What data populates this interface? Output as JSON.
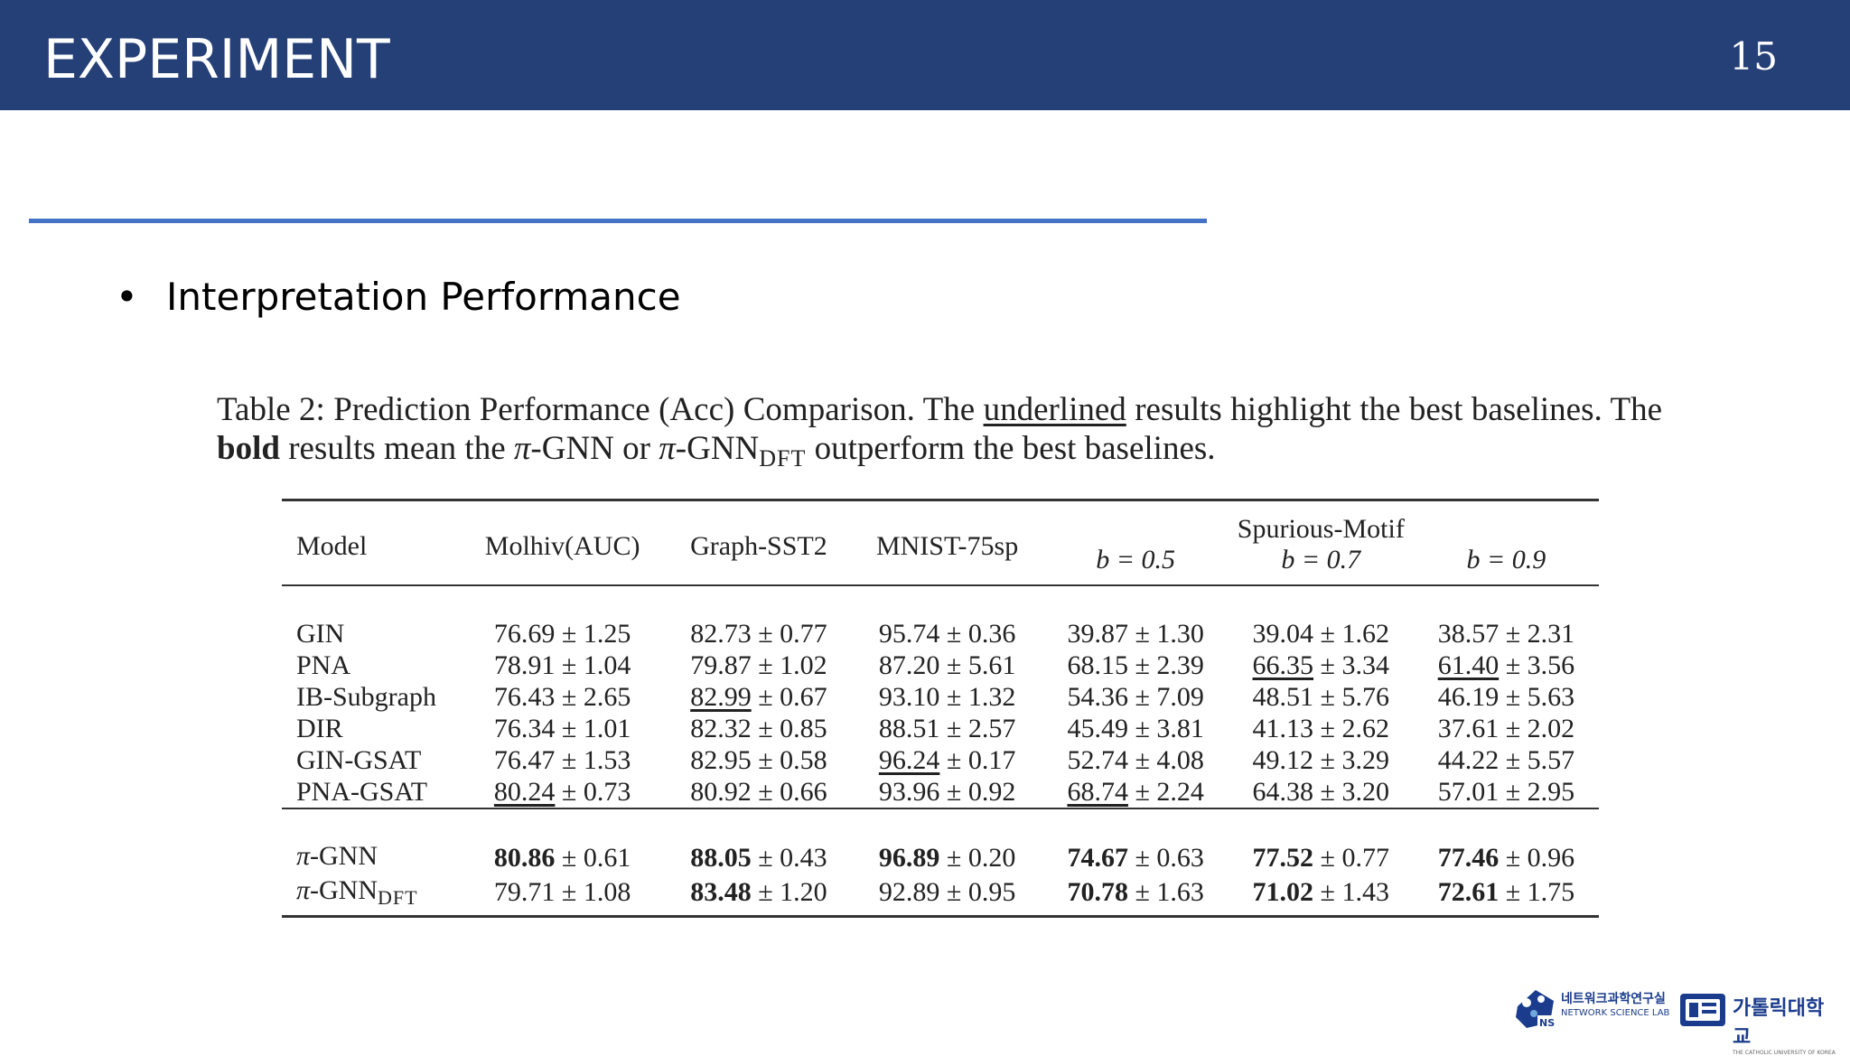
{
  "header": {
    "title": "EXPERIMENT",
    "page_number": "15"
  },
  "bullet": {
    "text": "Interpretation Performance"
  },
  "caption": {
    "p1": "Table 2:  Prediction Performance (Acc) Comparison.  The ",
    "underlined": "underlined",
    "p2": " results highlight the best baselines. The ",
    "bold": "bold",
    "p3": " results mean the ",
    "pi1": "π",
    "p4": "-GNN or ",
    "pi2": "π",
    "p5": "-GNN",
    "dft": "DFT",
    "p6": " outperform the best baselines."
  },
  "table": {
    "headers": {
      "model": "Model",
      "molhiv": "Molhiv(AUC)",
      "sst2": "Graph-SST2",
      "mnist": "MNIST-75sp",
      "spurious": "Spurious-Motif",
      "b05": "b = 0.5",
      "b07": "b = 0.7",
      "b09": "b = 0.9"
    },
    "rows": [
      {
        "model": "GIN",
        "cells": [
          {
            "v": "76.69",
            "s": "1.25"
          },
          {
            "v": "82.73",
            "s": "0.77"
          },
          {
            "v": "95.74",
            "s": "0.36"
          },
          {
            "v": "39.87",
            "s": "1.30"
          },
          {
            "v": "39.04",
            "s": "1.62"
          },
          {
            "v": "38.57",
            "s": "2.31"
          }
        ]
      },
      {
        "model": "PNA",
        "cells": [
          {
            "v": "78.91",
            "s": "1.04"
          },
          {
            "v": "79.87",
            "s": "1.02"
          },
          {
            "v": "87.20",
            "s": "5.61"
          },
          {
            "v": "68.15",
            "s": "2.39"
          },
          {
            "v": "66.35",
            "s": "3.34"
          },
          {
            "v": "61.40",
            "s": "3.56"
          }
        ]
      },
      {
        "model": "IB-Subgraph",
        "cells": [
          {
            "v": "76.43",
            "s": "2.65"
          },
          {
            "v": "82.99",
            "s": "0.67"
          },
          {
            "v": "93.10",
            "s": "1.32"
          },
          {
            "v": "54.36",
            "s": "7.09"
          },
          {
            "v": "48.51",
            "s": "5.76"
          },
          {
            "v": "46.19",
            "s": "5.63"
          }
        ]
      },
      {
        "model": "DIR",
        "cells": [
          {
            "v": "76.34",
            "s": "1.01"
          },
          {
            "v": "82.32",
            "s": "0.85"
          },
          {
            "v": "88.51",
            "s": "2.57"
          },
          {
            "v": "45.49",
            "s": "3.81"
          },
          {
            "v": "41.13",
            "s": "2.62"
          },
          {
            "v": "37.61",
            "s": "2.02"
          }
        ]
      },
      {
        "model": "GIN-GSAT",
        "cells": [
          {
            "v": "76.47",
            "s": "1.53"
          },
          {
            "v": "82.95",
            "s": "0.58"
          },
          {
            "v": "96.24",
            "s": "0.17"
          },
          {
            "v": "52.74",
            "s": "4.08"
          },
          {
            "v": "49.12",
            "s": "3.29"
          },
          {
            "v": "44.22",
            "s": "5.57"
          }
        ]
      },
      {
        "model": "PNA-GSAT",
        "cells": [
          {
            "v": "80.24",
            "s": "0.73"
          },
          {
            "v": "80.92",
            "s": "0.66"
          },
          {
            "v": "93.96",
            "s": "0.92"
          },
          {
            "v": "68.74",
            "s": "2.24"
          },
          {
            "v": "64.38",
            "s": "3.20"
          },
          {
            "v": "57.01",
            "s": "2.95"
          }
        ]
      }
    ],
    "ours": [
      {
        "model_pi": "π",
        "model": "-GNN",
        "model_sub": "",
        "cells": [
          {
            "v": "80.86",
            "s": "0.61"
          },
          {
            "v": "88.05",
            "s": "0.43"
          },
          {
            "v": "96.89",
            "s": "0.20"
          },
          {
            "v": "74.67",
            "s": "0.63"
          },
          {
            "v": "77.52",
            "s": "0.77"
          },
          {
            "v": "77.46",
            "s": "0.96"
          }
        ]
      },
      {
        "model_pi": "π",
        "model": "-GNN",
        "model_sub": "DFT",
        "cells": [
          {
            "v": "79.71",
            "s": "1.08"
          },
          {
            "v": "83.48",
            "s": "1.20"
          },
          {
            "v": "92.89",
            "s": "0.95"
          },
          {
            "v": "70.78",
            "s": "1.63"
          },
          {
            "v": "71.02",
            "s": "1.43"
          },
          {
            "v": "72.61",
            "s": "1.75"
          }
        ]
      }
    ]
  },
  "logos": {
    "lab_kr": "네트워크과학연구실",
    "lab_en": "NETWORK SCIENCE LAB",
    "lab_mark": "NS",
    "univ_kr": "가톨릭대학교",
    "univ_en": "THE CATHOLIC UNIVERSITY OF KOREA"
  },
  "colors": {
    "header_bg": "#253f77",
    "accent_line": "#4472c4",
    "logo_blue": "#1b3c8c"
  }
}
